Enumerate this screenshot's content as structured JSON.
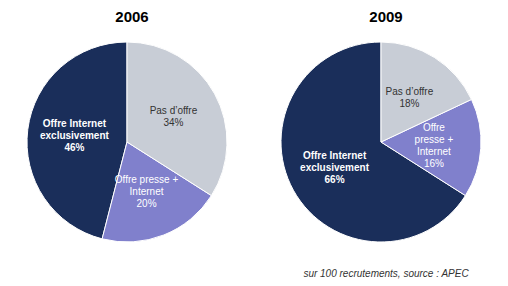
{
  "chart_data": [
    {
      "type": "pie",
      "title": "2006",
      "values": [
        46,
        20,
        34
      ],
      "value_labels": [
        "Offre Internet\nexclusivement\n46%",
        "Offre presse +\nInternet\n20%",
        "Pas d’offre\n34%"
      ],
      "colors": [
        "#1a2e5a",
        "#8080cc",
        "#c8cdd6"
      ],
      "data_labels": true
    },
    {
      "type": "pie",
      "title": "2009",
      "values": [
        66,
        16,
        18
      ],
      "value_labels": [
        "Offre Internet\nexclusivement\n66%",
        "Offre\npresse +\nInternet\n16%",
        "Pas d’offre\n18%"
      ],
      "colors": [
        "#1a2e5a",
        "#8080cc",
        "#c8cdd6"
      ],
      "data_labels": true,
      "annotation": "sur 100 recrutements, source : APEC"
    }
  ]
}
